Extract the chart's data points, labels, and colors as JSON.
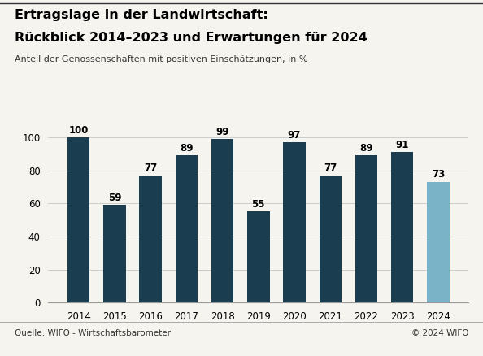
{
  "title_line1": "Ertragslage in der Landwirtschaft:",
  "title_line2": "Rückblick 2014–2023 und Erwartungen für 2024",
  "subtitle": "Anteil der Genossenschaften mit positiven Einschätzungen, in %",
  "categories": [
    "2014",
    "2015",
    "2016",
    "2017",
    "2018",
    "2019",
    "2020",
    "2021",
    "2022",
    "2023",
    "2024"
  ],
  "values": [
    100,
    59,
    77,
    89,
    99,
    55,
    97,
    77,
    89,
    91,
    73
  ],
  "bar_colors": [
    "#1a3d4f",
    "#1a3d4f",
    "#1a3d4f",
    "#1a3d4f",
    "#1a3d4f",
    "#1a3d4f",
    "#1a3d4f",
    "#1a3d4f",
    "#1a3d4f",
    "#1a3d4f",
    "#7ab3c8"
  ],
  "ylim": [
    0,
    112
  ],
  "yticks": [
    0,
    20,
    40,
    60,
    80,
    100
  ],
  "footer_left": "Quelle: WIFO - Wirtschaftsbarometer",
  "footer_right": "© 2024 WIFO",
  "background_color": "#f5f4ef",
  "grid_color": "#cccccc",
  "bar_label_fontsize": 8.5,
  "tick_fontsize": 8.5,
  "title1_fontsize": 11.5,
  "title2_fontsize": 11.5,
  "subtitle_fontsize": 8,
  "footer_fontsize": 7.5
}
